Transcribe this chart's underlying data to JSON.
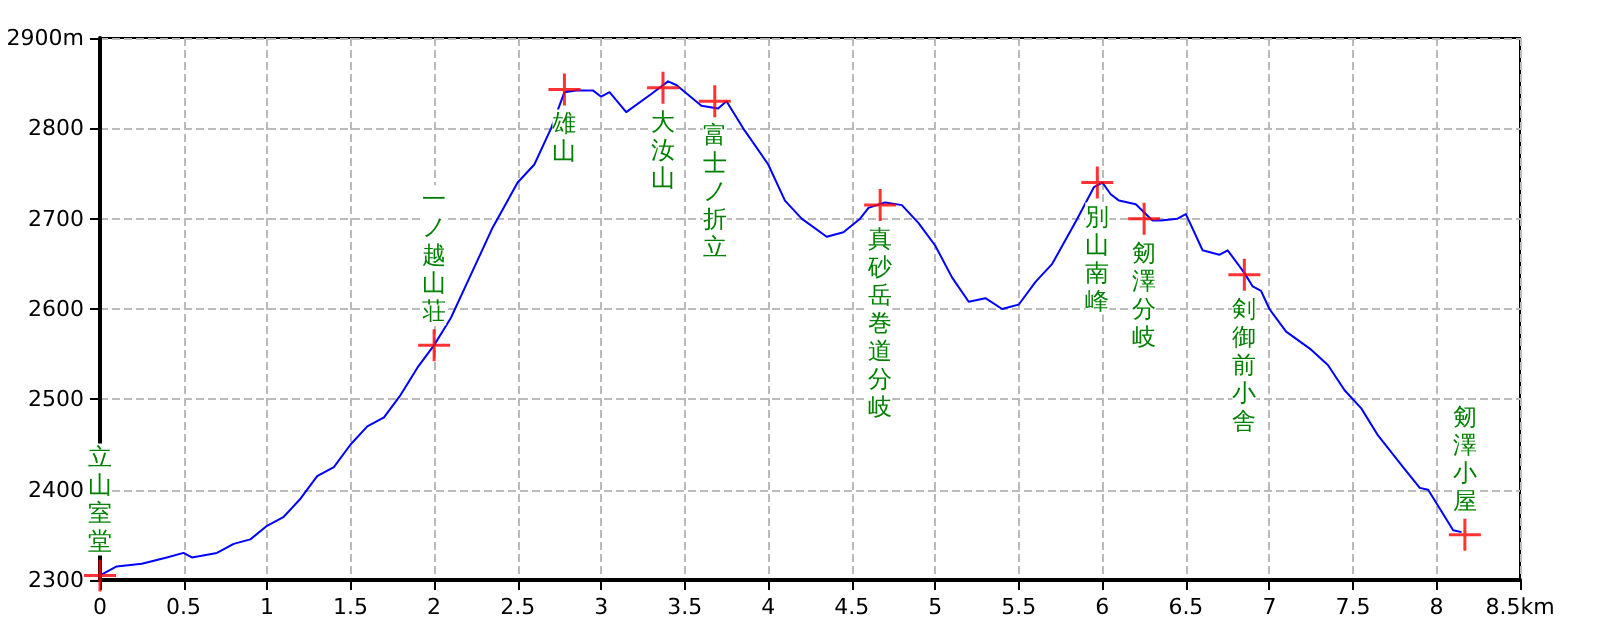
{
  "chart_data": {
    "type": "line",
    "xlim": [
      0,
      8.5
    ],
    "xticks": [
      0,
      0.5,
      1,
      1.5,
      2,
      2.5,
      3,
      3.5,
      4,
      4.5,
      5,
      5.5,
      6,
      6.5,
      7,
      7.5,
      8,
      {
        "value": 8.5,
        "label": "8.5km"
      }
    ],
    "ylim": [
      2300,
      2900
    ],
    "yticks": [
      2300,
      2400,
      2500,
      2600,
      2700,
      2800,
      {
        "value": 2900,
        "label": "2900m"
      }
    ],
    "grid": true,
    "series": [
      {
        "color": "#0000ff",
        "marker": "none",
        "line_style": "solid",
        "x": [
          0,
          0.1,
          0.25,
          0.4,
          0.5,
          0.55,
          0.7,
          0.8,
          0.9,
          1.0,
          1.1,
          1.2,
          1.3,
          1.4,
          1.5,
          1.6,
          1.7,
          1.8,
          1.9,
          2.0,
          2.1,
          2.2,
          2.35,
          2.5,
          2.6,
          2.7,
          2.78,
          2.85,
          2.95,
          3.0,
          3.05,
          3.15,
          3.3,
          3.4,
          3.45,
          3.6,
          3.7,
          3.75,
          3.85,
          4.0,
          4.1,
          4.2,
          4.35,
          4.45,
          4.55,
          4.6,
          4.7,
          4.8,
          4.9,
          5.0,
          5.1,
          5.2,
          5.3,
          5.4,
          5.5,
          5.6,
          5.7,
          5.85,
          5.95,
          6.0,
          6.05,
          6.1,
          6.2,
          6.3,
          6.35,
          6.45,
          6.5,
          6.6,
          6.7,
          6.75,
          6.85,
          6.9,
          6.95,
          7.0,
          7.1,
          7.25,
          7.35,
          7.45,
          7.55,
          7.65,
          7.8,
          7.9,
          7.95,
          8.05,
          8.1,
          8.15
        ],
        "values": [
          2305,
          2315,
          2318,
          2325,
          2330,
          2325,
          2330,
          2340,
          2345,
          2360,
          2370,
          2390,
          2415,
          2425,
          2450,
          2470,
          2480,
          2505,
          2535,
          2560,
          2590,
          2630,
          2690,
          2740,
          2760,
          2800,
          2840,
          2842,
          2842,
          2835,
          2840,
          2818,
          2838,
          2852,
          2848,
          2825,
          2822,
          2830,
          2800,
          2760,
          2720,
          2700,
          2680,
          2685,
          2700,
          2712,
          2718,
          2715,
          2695,
          2670,
          2635,
          2608,
          2612,
          2600,
          2605,
          2630,
          2650,
          2700,
          2735,
          2740,
          2727,
          2720,
          2716,
          2698,
          2698,
          2700,
          2705,
          2665,
          2660,
          2665,
          2640,
          2625,
          2620,
          2600,
          2575,
          2555,
          2538,
          2510,
          2490,
          2460,
          2425,
          2402,
          2400,
          2370,
          2355,
          2353
        ]
      },
      {
        "type": "scatter",
        "color": "#ff0000",
        "marker": "cross",
        "x": [
          0,
          2.0,
          2.78,
          3.37,
          3.68,
          4.67,
          5.97,
          6.25,
          6.85,
          8.17
        ],
        "values": [
          2305,
          2560,
          2843,
          2845,
          2830,
          2715,
          2740,
          2700,
          2638,
          2350
        ]
      }
    ],
    "annotations": [
      {
        "text": "立山室堂",
        "x": 0,
        "y": 2305
      },
      {
        "text": "一ノ越山荘",
        "x": 2.0,
        "y": 2560
      },
      {
        "text": "雄山",
        "x": 2.78,
        "y": 2843
      },
      {
        "text": "大汝山",
        "x": 3.37,
        "y": 2845
      },
      {
        "text": "富士ノ折立",
        "x": 3.68,
        "y": 2830
      },
      {
        "text": "真砂岳巻道分岐",
        "x": 4.67,
        "y": 2715
      },
      {
        "text": "別山南峰",
        "x": 5.97,
        "y": 2740
      },
      {
        "text": "剱澤分岐",
        "x": 6.25,
        "y": 2700
      },
      {
        "text": "剣御前小舎",
        "x": 6.85,
        "y": 2638
      },
      {
        "text": "剱澤小屋",
        "x": 8.17,
        "y": 2350
      }
    ]
  }
}
